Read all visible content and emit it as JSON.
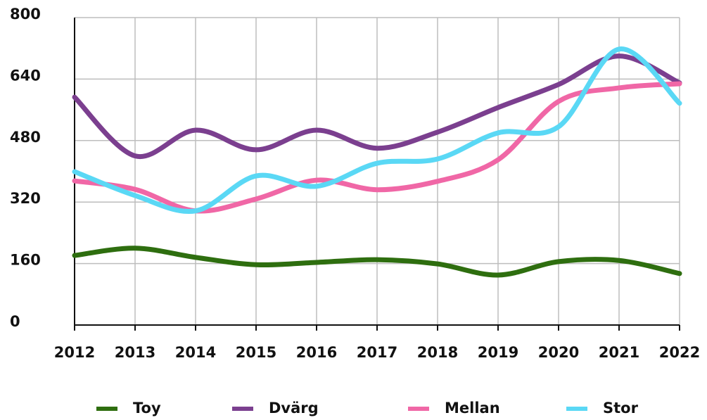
{
  "chart_data": {
    "type": "line",
    "categories": [
      "2012",
      "2013",
      "2014",
      "2015",
      "2016",
      "2017",
      "2018",
      "2019",
      "2020",
      "2021",
      "2022"
    ],
    "series": [
      {
        "name": "Toy",
        "color": "#2e6e0f",
        "values": [
          181,
          200,
          176,
          157,
          163,
          170,
          159,
          130,
          165,
          168,
          134
        ]
      },
      {
        "name": "Dvärg",
        "color": "#7b3f8f",
        "values": [
          593,
          440,
          507,
          456,
          507,
          460,
          502,
          566,
          626,
          700,
          630
        ]
      },
      {
        "name": "Mellan",
        "color": "#f067a6",
        "values": [
          375,
          353,
          297,
          328,
          377,
          352,
          374,
          430,
          582,
          617,
          628
        ]
      },
      {
        "name": "Stor",
        "color": "#5ad8f5",
        "values": [
          399,
          337,
          297,
          388,
          361,
          421,
          432,
          500,
          516,
          718,
          577
        ]
      }
    ],
    "ylim": [
      0,
      800
    ],
    "yticks": [
      0,
      160,
      320,
      480,
      640,
      800
    ],
    "grid": true,
    "legend": "bottom"
  }
}
